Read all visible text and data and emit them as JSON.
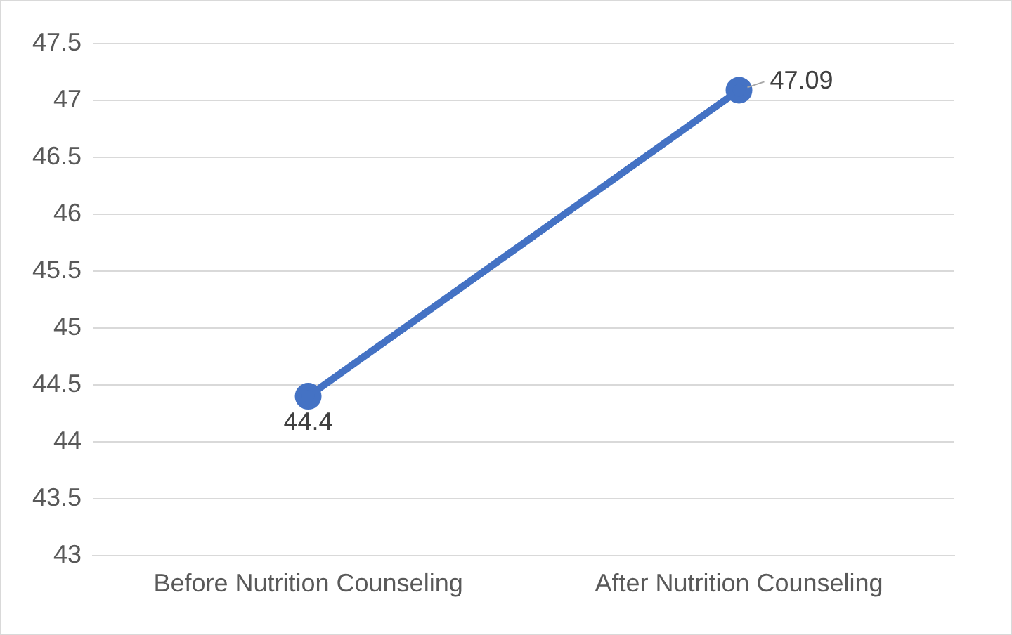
{
  "chart_data": {
    "type": "line",
    "categories": [
      "Before Nutrition Counseling",
      "After Nutrition Counseling"
    ],
    "series": [
      {
        "color": "#4472c4",
        "values": [
          44.4,
          47.09
        ]
      }
    ],
    "ylim": [
      43,
      47.5
    ],
    "yticks": [
      43,
      43.5,
      44,
      44.5,
      45,
      45.5,
      46,
      46.5,
      47,
      47.5
    ],
    "grid": "y",
    "marker": "circle",
    "line_style": "solid",
    "data_labels": true,
    "legend": false
  }
}
